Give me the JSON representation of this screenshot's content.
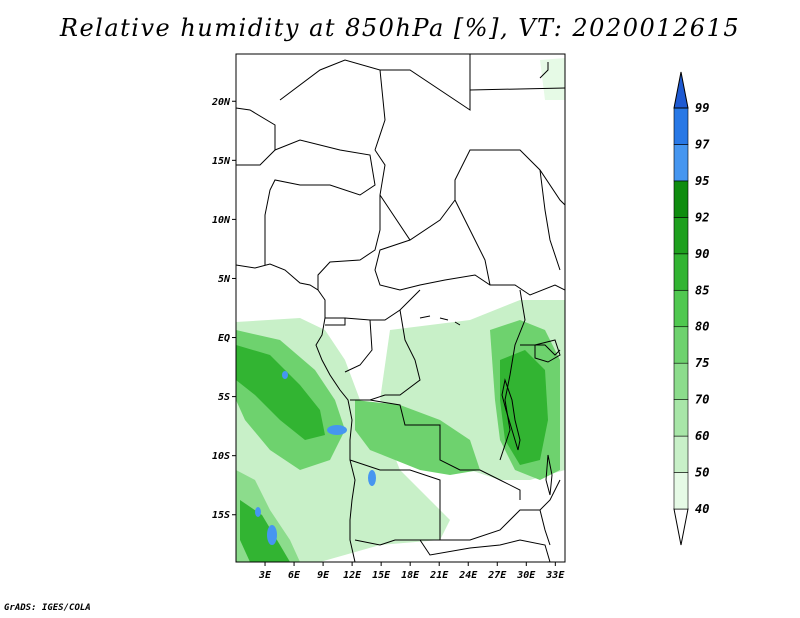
{
  "title": "Relative humidity at 850hPa [%], VT: 2020012615",
  "credit": "GrADS: IGES/COLA",
  "map": {
    "lon_range": [
      0,
      34
    ],
    "lat_range": [
      -19,
      24
    ],
    "lat_ticks": [
      {
        "label": "20N",
        "lat": 20
      },
      {
        "label": "15N",
        "lat": 15
      },
      {
        "label": "10N",
        "lat": 10
      },
      {
        "label": "5N",
        "lat": 5
      },
      {
        "label": "EQ",
        "lat": 0
      },
      {
        "label": "5S",
        "lat": -5
      },
      {
        "label": "10S",
        "lat": -10
      },
      {
        "label": "15S",
        "lat": -15
      }
    ],
    "lon_ticks": [
      {
        "label": "3E",
        "lon": 3
      },
      {
        "label": "6E",
        "lon": 6
      },
      {
        "label": "9E",
        "lon": 9
      },
      {
        "label": "12E",
        "lon": 12
      },
      {
        "label": "15E",
        "lon": 15
      },
      {
        "label": "18E",
        "lon": 18
      },
      {
        "label": "21E",
        "lon": 21
      },
      {
        "label": "24E",
        "lon": 24
      },
      {
        "label": "27E",
        "lon": 27
      },
      {
        "label": "30E",
        "lon": 30
      },
      {
        "label": "33E",
        "lon": 33
      }
    ]
  },
  "colorbar": {
    "levels": [
      "40",
      "50",
      "60",
      "70",
      "75",
      "80",
      "85",
      "90",
      "92",
      "95",
      "97",
      "99"
    ],
    "colors": [
      "#ffffff",
      "#e6fae6",
      "#c8f0c8",
      "#a8e6a8",
      "#8cdc8c",
      "#6ed26e",
      "#50c850",
      "#32b432",
      "#1ea01e",
      "#0f8c0f",
      "#4696f0",
      "#2878e6",
      "#1e5ad2"
    ]
  },
  "colors": {
    "green_light": "#c8f0c8",
    "green_mid": "#6ed26e",
    "green_dark": "#1ea01e",
    "blue": "#4696f0"
  }
}
